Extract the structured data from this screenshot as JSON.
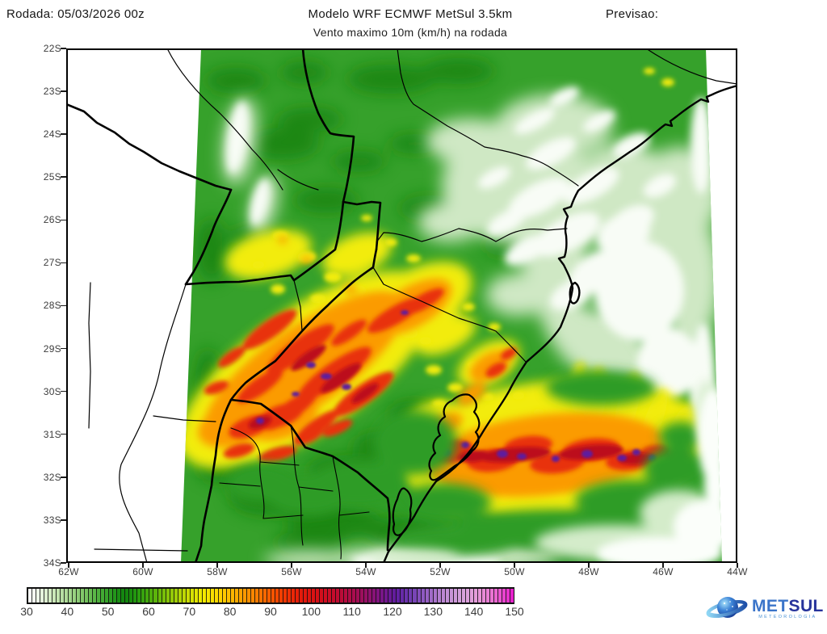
{
  "header": {
    "run_label": "Rodada: 05/03/2026 00z",
    "title": "Modelo WRF ECMWF MetSul 3.5km",
    "subtitle": "Vento maximo 10m (km/h) na rodada",
    "forecast_label": "Previsao:"
  },
  "map": {
    "lat_ticks": [
      "22S",
      "23S",
      "24S",
      "25S",
      "26S",
      "27S",
      "28S",
      "29S",
      "30S",
      "31S",
      "32S",
      "33S",
      "34S"
    ],
    "lon_ticks": [
      "62W",
      "60W",
      "58W",
      "56W",
      "54W",
      "52W",
      "50W",
      "48W",
      "46W",
      "44W"
    ]
  },
  "colorbar": {
    "unit": "km/h",
    "min": 30,
    "max": 150,
    "cells": 120,
    "tick_values": [
      30,
      40,
      50,
      60,
      70,
      80,
      90,
      100,
      110,
      120,
      130,
      140,
      150
    ],
    "stops": [
      [
        30,
        "#ffffff"
      ],
      [
        33,
        "#e9f5e2"
      ],
      [
        36,
        "#cfe9bd"
      ],
      [
        40,
        "#a9d893"
      ],
      [
        44,
        "#7cc564"
      ],
      [
        48,
        "#47ad37"
      ],
      [
        52,
        "#1e9417"
      ],
      [
        54,
        "#10830e"
      ],
      [
        57,
        "#259b0f"
      ],
      [
        61,
        "#55b10b"
      ],
      [
        65,
        "#8ec708"
      ],
      [
        69,
        "#c4da04"
      ],
      [
        73,
        "#f2ec00"
      ],
      [
        77,
        "#fed700"
      ],
      [
        81,
        "#feb000"
      ],
      [
        85,
        "#fc8b00"
      ],
      [
        89,
        "#f86300"
      ],
      [
        93,
        "#f13a02"
      ],
      [
        97,
        "#e61c0a"
      ],
      [
        101,
        "#d81114"
      ],
      [
        105,
        "#c80c28"
      ],
      [
        109,
        "#b30c42"
      ],
      [
        113,
        "#9a0f61"
      ],
      [
        117,
        "#7d1584"
      ],
      [
        121,
        "#5f1da0"
      ],
      [
        125,
        "#7440b5"
      ],
      [
        129,
        "#9c66c6"
      ],
      [
        133,
        "#bf8cd4"
      ],
      [
        137,
        "#d5a2dc"
      ],
      [
        141,
        "#e59bd9"
      ],
      [
        145,
        "#eb6ed2"
      ],
      [
        148,
        "#e93ccd"
      ],
      [
        150,
        "#e518ca"
      ]
    ]
  },
  "palette": {
    "base_green": "#36a12b",
    "dark_green": "#15810f",
    "light_mint": "#cfe8c4",
    "calm_white": "#f8fcf6",
    "yellow": "#f2ec07",
    "orange": "#fb9b00",
    "red": "#e8300b",
    "dark_red": "#bc0a1c",
    "purple": "#5e1b9e",
    "logo_blue": "#3b74c9",
    "logo_navy": "#27339b"
  },
  "logo": {
    "met": "MET",
    "sul": "SUL",
    "tagline": "METEOROLOGIA"
  }
}
